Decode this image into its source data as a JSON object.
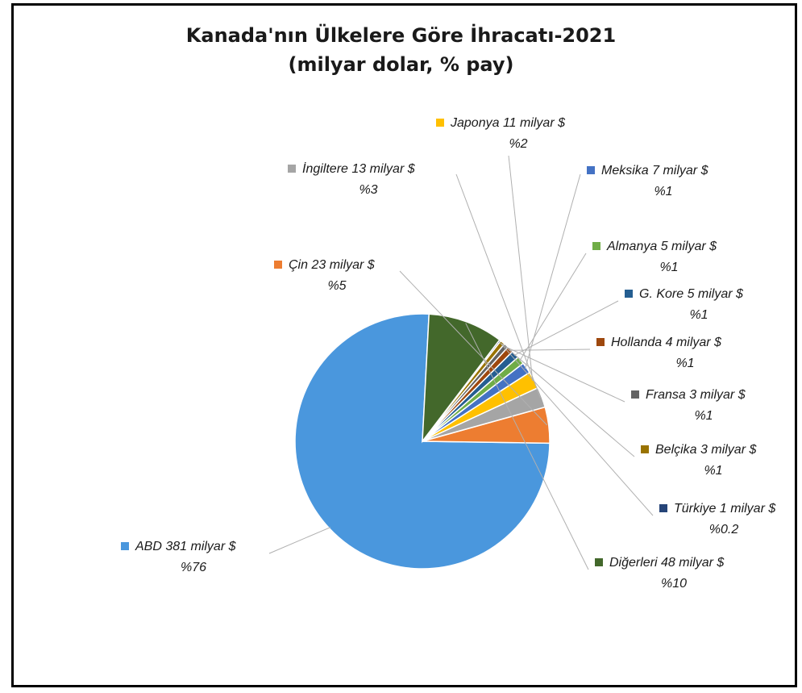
{
  "chart_data": {
    "type": "pie",
    "title": "Kanada'nın Ülkelere Göre İhracatı-2021",
    "subtitle": "(milyar dolar, % pay)",
    "slices": [
      {
        "name": "ABD",
        "value": 381,
        "label": "ABD 381 milyar $",
        "pct": "%76",
        "color": "#4a97dd"
      },
      {
        "name": "Çin",
        "value": 23,
        "label": "Çin 23 milyar $",
        "pct": "%5",
        "color": "#ed7d31"
      },
      {
        "name": "İngiltere",
        "value": 13,
        "label": "İngiltere 13 milyar $",
        "pct": "%3",
        "color": "#a5a5a5"
      },
      {
        "name": "Japonya",
        "value": 11,
        "label": "Japonya 11 milyar $",
        "pct": "%2",
        "color": "#ffc000"
      },
      {
        "name": "Meksika",
        "value": 7,
        "label": "Meksika 7 milyar $",
        "pct": "%1",
        "color": "#4472c4"
      },
      {
        "name": "Almanya",
        "value": 5,
        "label": "Almanya 5 milyar $",
        "pct": "%1",
        "color": "#70ad47"
      },
      {
        "name": "G. Kore",
        "value": 5,
        "label": "G. Kore 5 milyar $",
        "pct": "%1",
        "color": "#255e91"
      },
      {
        "name": "Hollanda",
        "value": 4,
        "label": "Hollanda 4 milyar $",
        "pct": "%1",
        "color": "#9e480e"
      },
      {
        "name": "Fransa",
        "value": 3,
        "label": "Fransa 3 milyar $",
        "pct": "%1",
        "color": "#636363"
      },
      {
        "name": "Belçika",
        "value": 3,
        "label": "Belçika 3 milyar $",
        "pct": "%1",
        "color": "#997300"
      },
      {
        "name": "Türkiye",
        "value": 1,
        "label": "Türkiye 1 milyar $",
        "pct": "%0.2",
        "color": "#264478"
      },
      {
        "name": "Diğerleri",
        "value": 48,
        "label": "Diğerleri 48 milyar $",
        "pct": "%10",
        "color": "#43682b"
      }
    ]
  }
}
